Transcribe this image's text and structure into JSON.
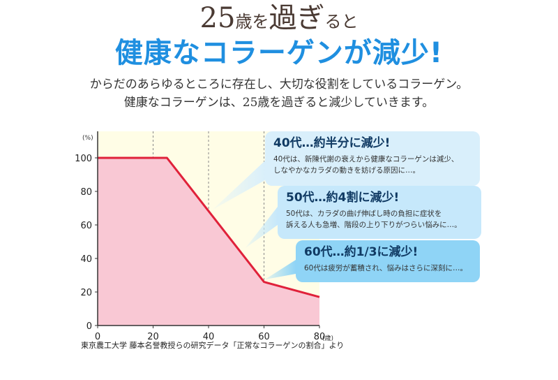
{
  "heading": {
    "line1_number": "25",
    "line1_small_a": "歳",
    "line1_mid": "を",
    "line1_main": "過ぎ",
    "line1_small_b": "る",
    "line1_end": "と",
    "line2": "健康なコラーゲンが減少!"
  },
  "lead": {
    "line1": "からだのあらゆるところに存在し、大切な役割をしているコラーゲン。",
    "line2": "健康なコラーゲンは、25歳を過ぎると減少していきます。"
  },
  "callouts": [
    {
      "title": "40代…約半分に減少!",
      "body_line1": "40代は、新陳代謝の衰えから健康なコラーゲンは減少、",
      "body_line2": "しなやかなカラダの動きを妨げる原因に…。"
    },
    {
      "title": "50代…約4割に減少!",
      "body_line1": "50代は、カラダの曲げ伸ばし時の負担に症状を",
      "body_line2": "訴える人も急増、階段の上り下りがつらい悩みに…。"
    },
    {
      "title": "60代…約1/3に減少!",
      "body_line1": "60代は疲労が蓄積され、悩みはさらに深刻に…。",
      "body_line2": ""
    }
  ],
  "source": "東京農工大学 藤本名誉教授らの研究データ「正常なコラーゲンの割合」より",
  "colors": {
    "line": "#e0213a",
    "area": "#f9c8d4",
    "plot_bg": "#fffde6",
    "heading_blue": "#1f8fe0"
  },
  "chart_data": {
    "type": "area",
    "x": [
      0,
      25,
      60,
      80
    ],
    "y": [
      100,
      100,
      26,
      17
    ],
    "xticks": [
      "0",
      "20",
      "40",
      "60",
      "80"
    ],
    "xtick_values": [
      0,
      20,
      40,
      60,
      80
    ],
    "yticks": [
      "0",
      "20",
      "40",
      "60",
      "80",
      "100"
    ],
    "ytick_values": [
      0,
      20,
      40,
      60,
      80,
      100
    ],
    "xunit": "(歳)",
    "yunit": "(%)",
    "xlim": [
      0,
      80
    ],
    "ylim": [
      0,
      110
    ],
    "vertical_dashed_at": [
      20,
      40,
      60
    ]
  }
}
